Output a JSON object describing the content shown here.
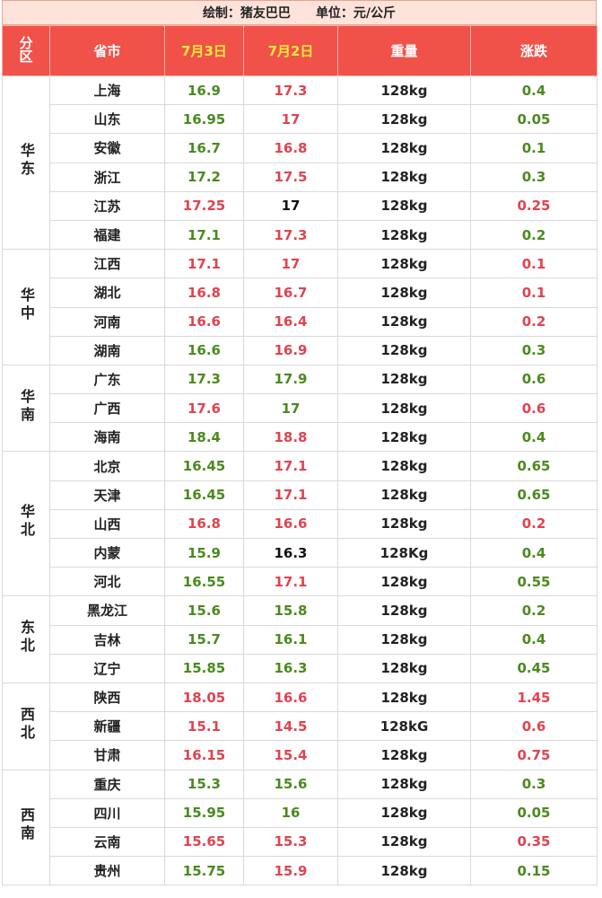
{
  "header": {
    "author": "绘制：猪友巴巴",
    "unit": "单位：元/公斤"
  },
  "columns": [
    "分区",
    "省市",
    "7月3日",
    "7月2日",
    "重量",
    "涨跌"
  ],
  "palette": {
    "g": "#4a8a1e",
    "r": "#e0434f",
    "k": "#111111"
  },
  "regions": [
    {
      "name": "华东",
      "rows": [
        {
          "cells": [
            "上海",
            "16.9",
            "17.3",
            "128kg",
            "0.4"
          ],
          "colors": [
            "g",
            "r",
            "g"
          ]
        },
        {
          "cells": [
            "山东",
            "16.95",
            "17",
            "128kg",
            "0.05"
          ],
          "colors": [
            "g",
            "r",
            "g"
          ]
        },
        {
          "cells": [
            "安徽",
            "16.7",
            "16.8",
            "128kg",
            "0.1"
          ],
          "colors": [
            "g",
            "r",
            "g"
          ]
        },
        {
          "cells": [
            "浙江",
            "17.2",
            "17.5",
            "128kg",
            "0.3"
          ],
          "colors": [
            "g",
            "r",
            "g"
          ]
        },
        {
          "cells": [
            "江苏",
            "17.25",
            "17",
            "128kg",
            "0.25"
          ],
          "colors": [
            "r",
            "k",
            "r"
          ]
        },
        {
          "cells": [
            "福建",
            "17.1",
            "17.3",
            "128kg",
            "0.2"
          ],
          "colors": [
            "g",
            "r",
            "g"
          ]
        }
      ]
    },
    {
      "name": "华中",
      "rows": [
        {
          "cells": [
            "江西",
            "17.1",
            "17",
            "128kg",
            "0.1"
          ],
          "colors": [
            "r",
            "r",
            "r"
          ]
        },
        {
          "cells": [
            "湖北",
            "16.8",
            "16.7",
            "128kg",
            "0.1"
          ],
          "colors": [
            "r",
            "r",
            "r"
          ]
        },
        {
          "cells": [
            "河南",
            "16.6",
            "16.4",
            "128kg",
            "0.2"
          ],
          "colors": [
            "r",
            "r",
            "r"
          ]
        },
        {
          "cells": [
            "湖南",
            "16.6",
            "16.9",
            "128kg",
            "0.3"
          ],
          "colors": [
            "g",
            "r",
            "g"
          ]
        }
      ]
    },
    {
      "name": "华南",
      "rows": [
        {
          "cells": [
            "广东",
            "17.3",
            "17.9",
            "128kg",
            "0.6"
          ],
          "colors": [
            "g",
            "g",
            "g"
          ]
        },
        {
          "cells": [
            "广西",
            "17.6",
            "17",
            "128kg",
            "0.6"
          ],
          "colors": [
            "r",
            "g",
            "r"
          ]
        },
        {
          "cells": [
            "海南",
            "18.4",
            "18.8",
            "128kg",
            "0.4"
          ],
          "colors": [
            "g",
            "r",
            "g"
          ]
        }
      ]
    },
    {
      "name": "华北",
      "rows": [
        {
          "cells": [
            "北京",
            "16.45",
            "17.1",
            "128kg",
            "0.65"
          ],
          "colors": [
            "g",
            "r",
            "g"
          ]
        },
        {
          "cells": [
            "天津",
            "16.45",
            "17.1",
            "128kg",
            "0.65"
          ],
          "colors": [
            "g",
            "r",
            "g"
          ]
        },
        {
          "cells": [
            "山西",
            "16.8",
            "16.6",
            "128kg",
            "0.2"
          ],
          "colors": [
            "r",
            "r",
            "r"
          ]
        },
        {
          "cells": [
            "内蒙",
            "15.9",
            "16.3",
            "128Kg",
            "0.4"
          ],
          "colors": [
            "g",
            "k",
            "g"
          ]
        },
        {
          "cells": [
            "河北",
            "16.55",
            "17.1",
            "128kg",
            "0.55"
          ],
          "colors": [
            "g",
            "r",
            "g"
          ]
        }
      ]
    },
    {
      "name": "东北",
      "rows": [
        {
          "cells": [
            "黑龙江",
            "15.6",
            "15.8",
            "128kg",
            "0.2"
          ],
          "colors": [
            "g",
            "g",
            "g"
          ]
        },
        {
          "cells": [
            "吉林",
            "15.7",
            "16.1",
            "128kg",
            "0.4"
          ],
          "colors": [
            "g",
            "g",
            "g"
          ]
        },
        {
          "cells": [
            "辽宁",
            "15.85",
            "16.3",
            "128kg",
            "0.45"
          ],
          "colors": [
            "g",
            "g",
            "g"
          ]
        }
      ]
    },
    {
      "name": "西北",
      "rows": [
        {
          "cells": [
            "陕西",
            "18.05",
            "16.6",
            "128kg",
            "1.45"
          ],
          "colors": [
            "r",
            "r",
            "r"
          ]
        },
        {
          "cells": [
            "新疆",
            "15.1",
            "14.5",
            "128kG",
            "0.6"
          ],
          "colors": [
            "r",
            "r",
            "r"
          ]
        },
        {
          "cells": [
            "甘肃",
            "16.15",
            "15.4",
            "128kg",
            "0.75"
          ],
          "colors": [
            "r",
            "r",
            "r"
          ]
        }
      ]
    },
    {
      "name": "西南",
      "rows": [
        {
          "cells": [
            "重庆",
            "15.3",
            "15.6",
            "128kg",
            "0.3"
          ],
          "colors": [
            "g",
            "g",
            "g"
          ]
        },
        {
          "cells": [
            "四川",
            "15.95",
            "16",
            "128kg",
            "0.05"
          ],
          "colors": [
            "g",
            "g",
            "g"
          ]
        },
        {
          "cells": [
            "云南",
            "15.65",
            "15.3",
            "128kg",
            "0.35"
          ],
          "colors": [
            "r",
            "r",
            "r"
          ]
        },
        {
          "cells": [
            "贵州",
            "15.75",
            "15.9",
            "128kg",
            "0.15"
          ],
          "colors": [
            "g",
            "r",
            "g"
          ]
        }
      ]
    }
  ]
}
